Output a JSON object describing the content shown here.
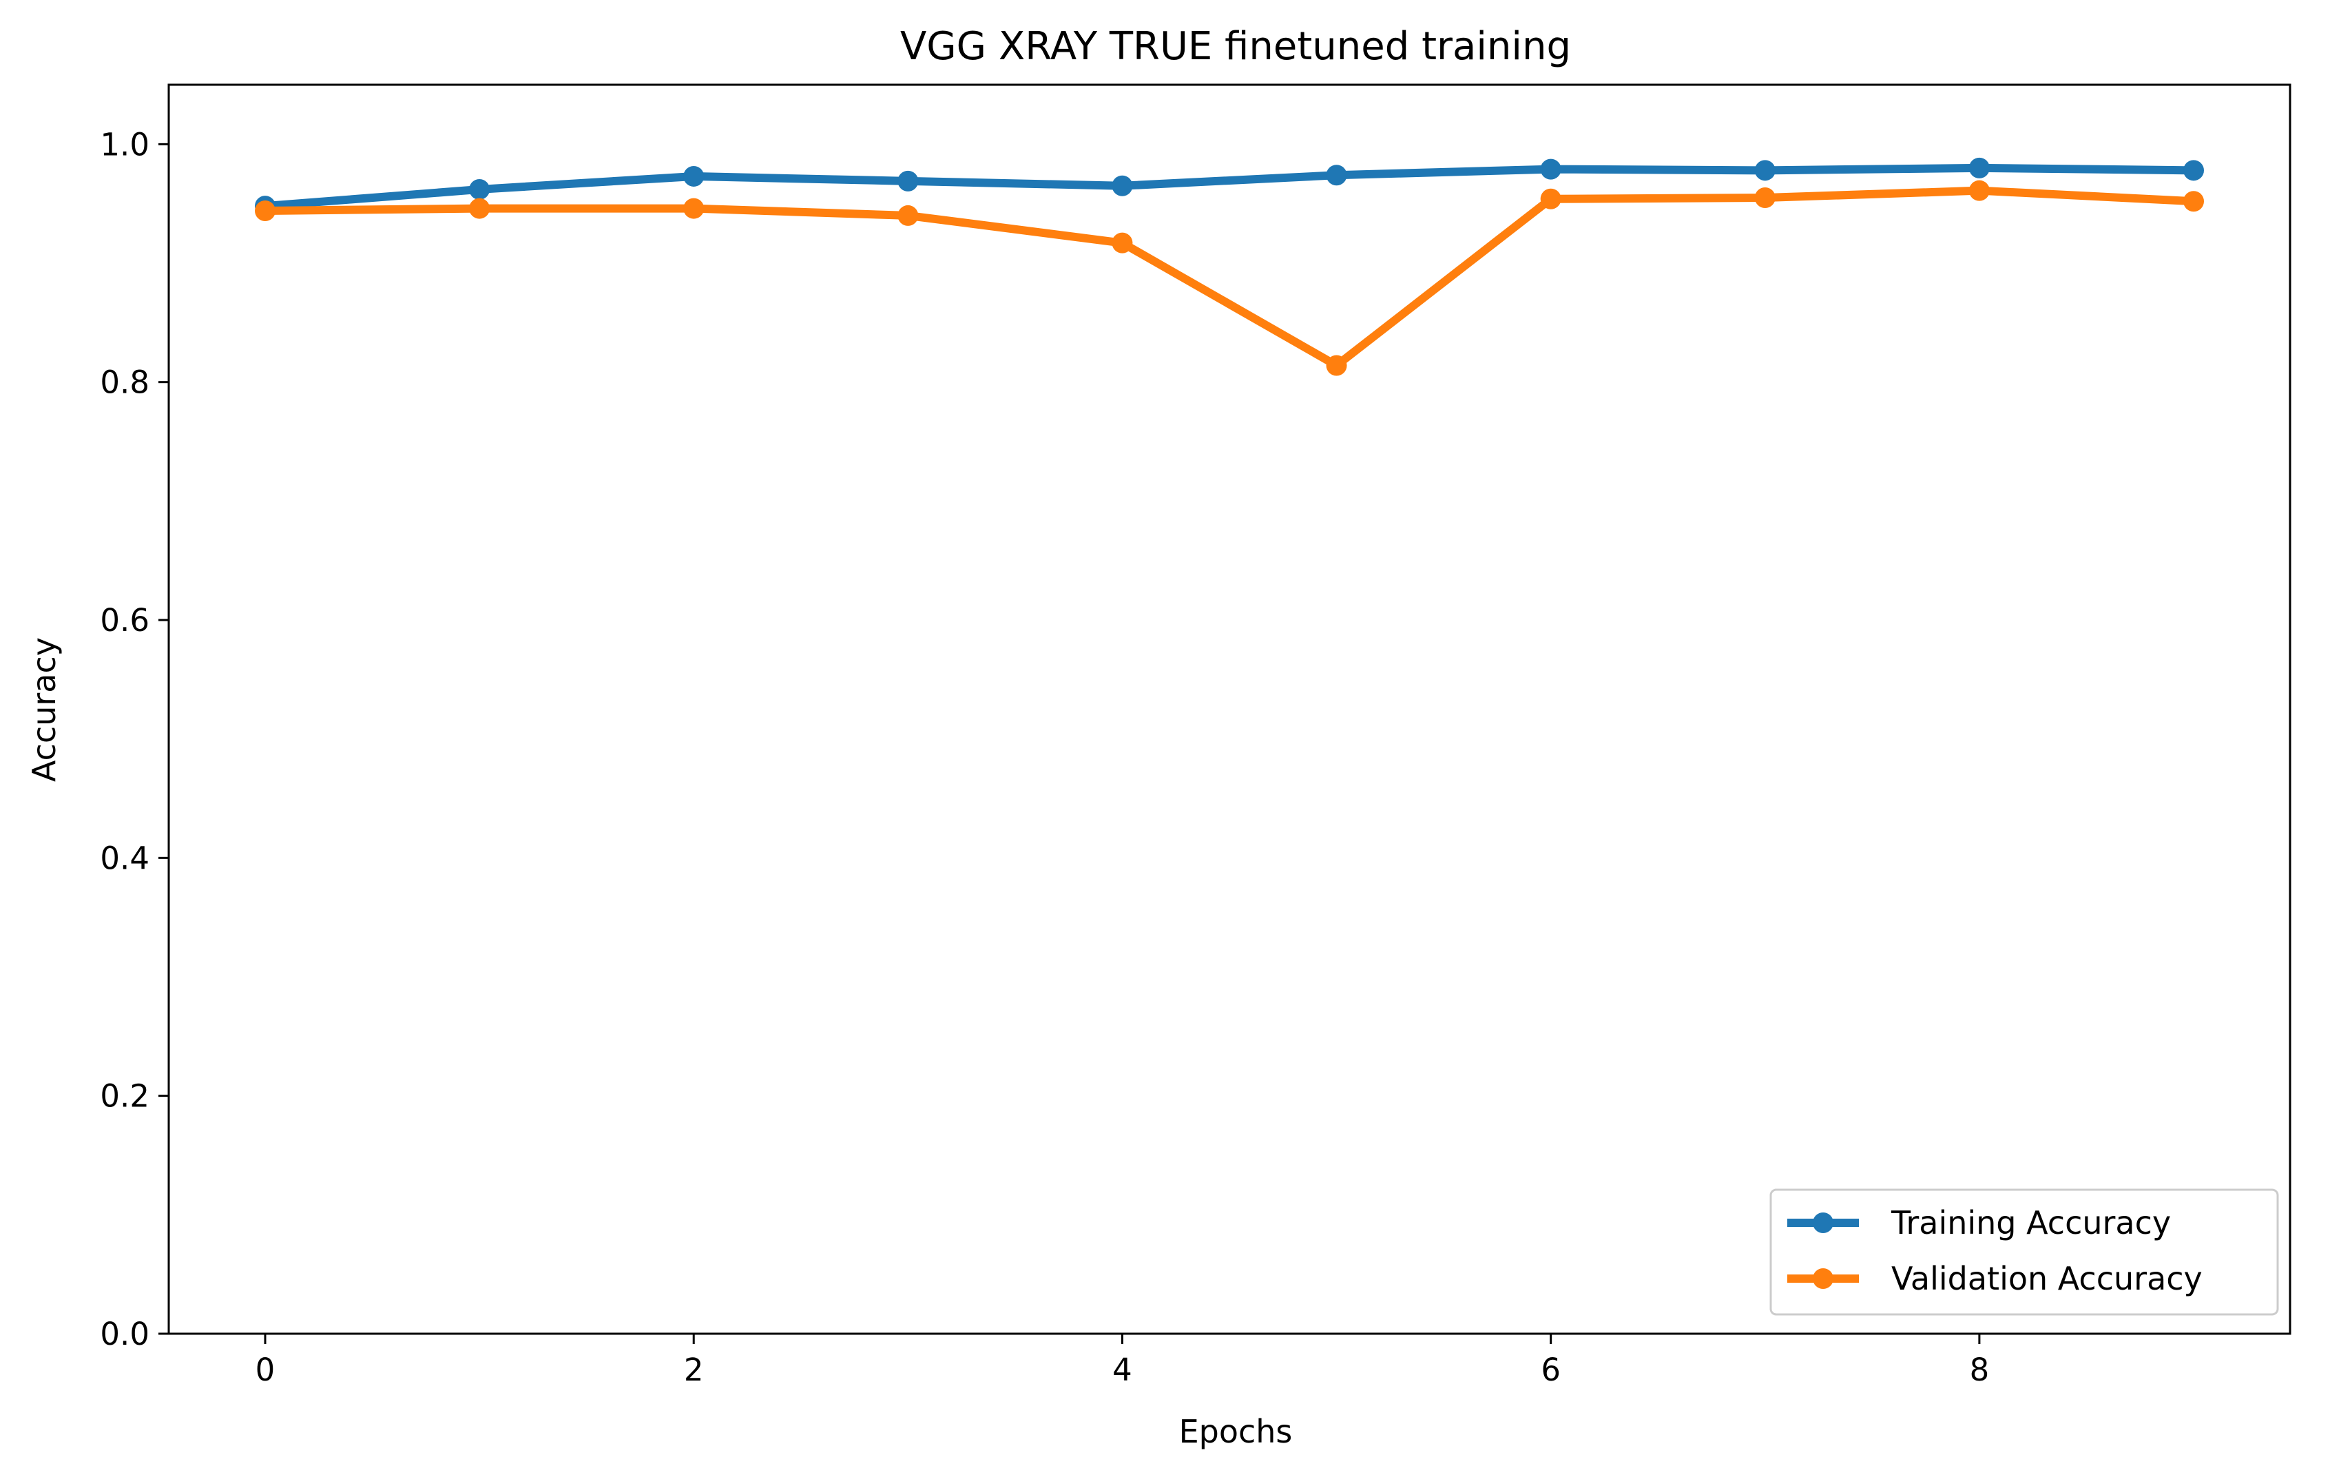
{
  "chart_data": {
    "type": "line",
    "title": "VGG XRAY TRUE finetuned training",
    "xlabel": "Epochs",
    "ylabel": "Accuracy",
    "x": [
      0,
      1,
      2,
      3,
      4,
      5,
      6,
      7,
      8,
      9
    ],
    "xlim": [
      -0.45,
      9.45
    ],
    "ylim": [
      0.0,
      1.05
    ],
    "xticks": [
      0,
      2,
      4,
      6,
      8
    ],
    "yticks": [
      0.0,
      0.2,
      0.4,
      0.6,
      0.8,
      1.0
    ],
    "xtick_labels": [
      "0",
      "2",
      "4",
      "6",
      "8"
    ],
    "ytick_labels": [
      "0.0",
      "0.2",
      "0.4",
      "0.6",
      "0.8",
      "1.0"
    ],
    "grid": false,
    "legend_position": "lower-right",
    "series": [
      {
        "name": "Training Accuracy",
        "color": "#1f77b4",
        "marker": "circle",
        "values": [
          0.948,
          0.962,
          0.973,
          0.969,
          0.965,
          0.974,
          0.979,
          0.978,
          0.98,
          0.978
        ]
      },
      {
        "name": "Validation Accuracy",
        "color": "#ff7f0e",
        "marker": "circle",
        "values": [
          0.944,
          0.946,
          0.946,
          0.94,
          0.917,
          0.814,
          0.954,
          0.955,
          0.961,
          0.952
        ]
      }
    ]
  }
}
